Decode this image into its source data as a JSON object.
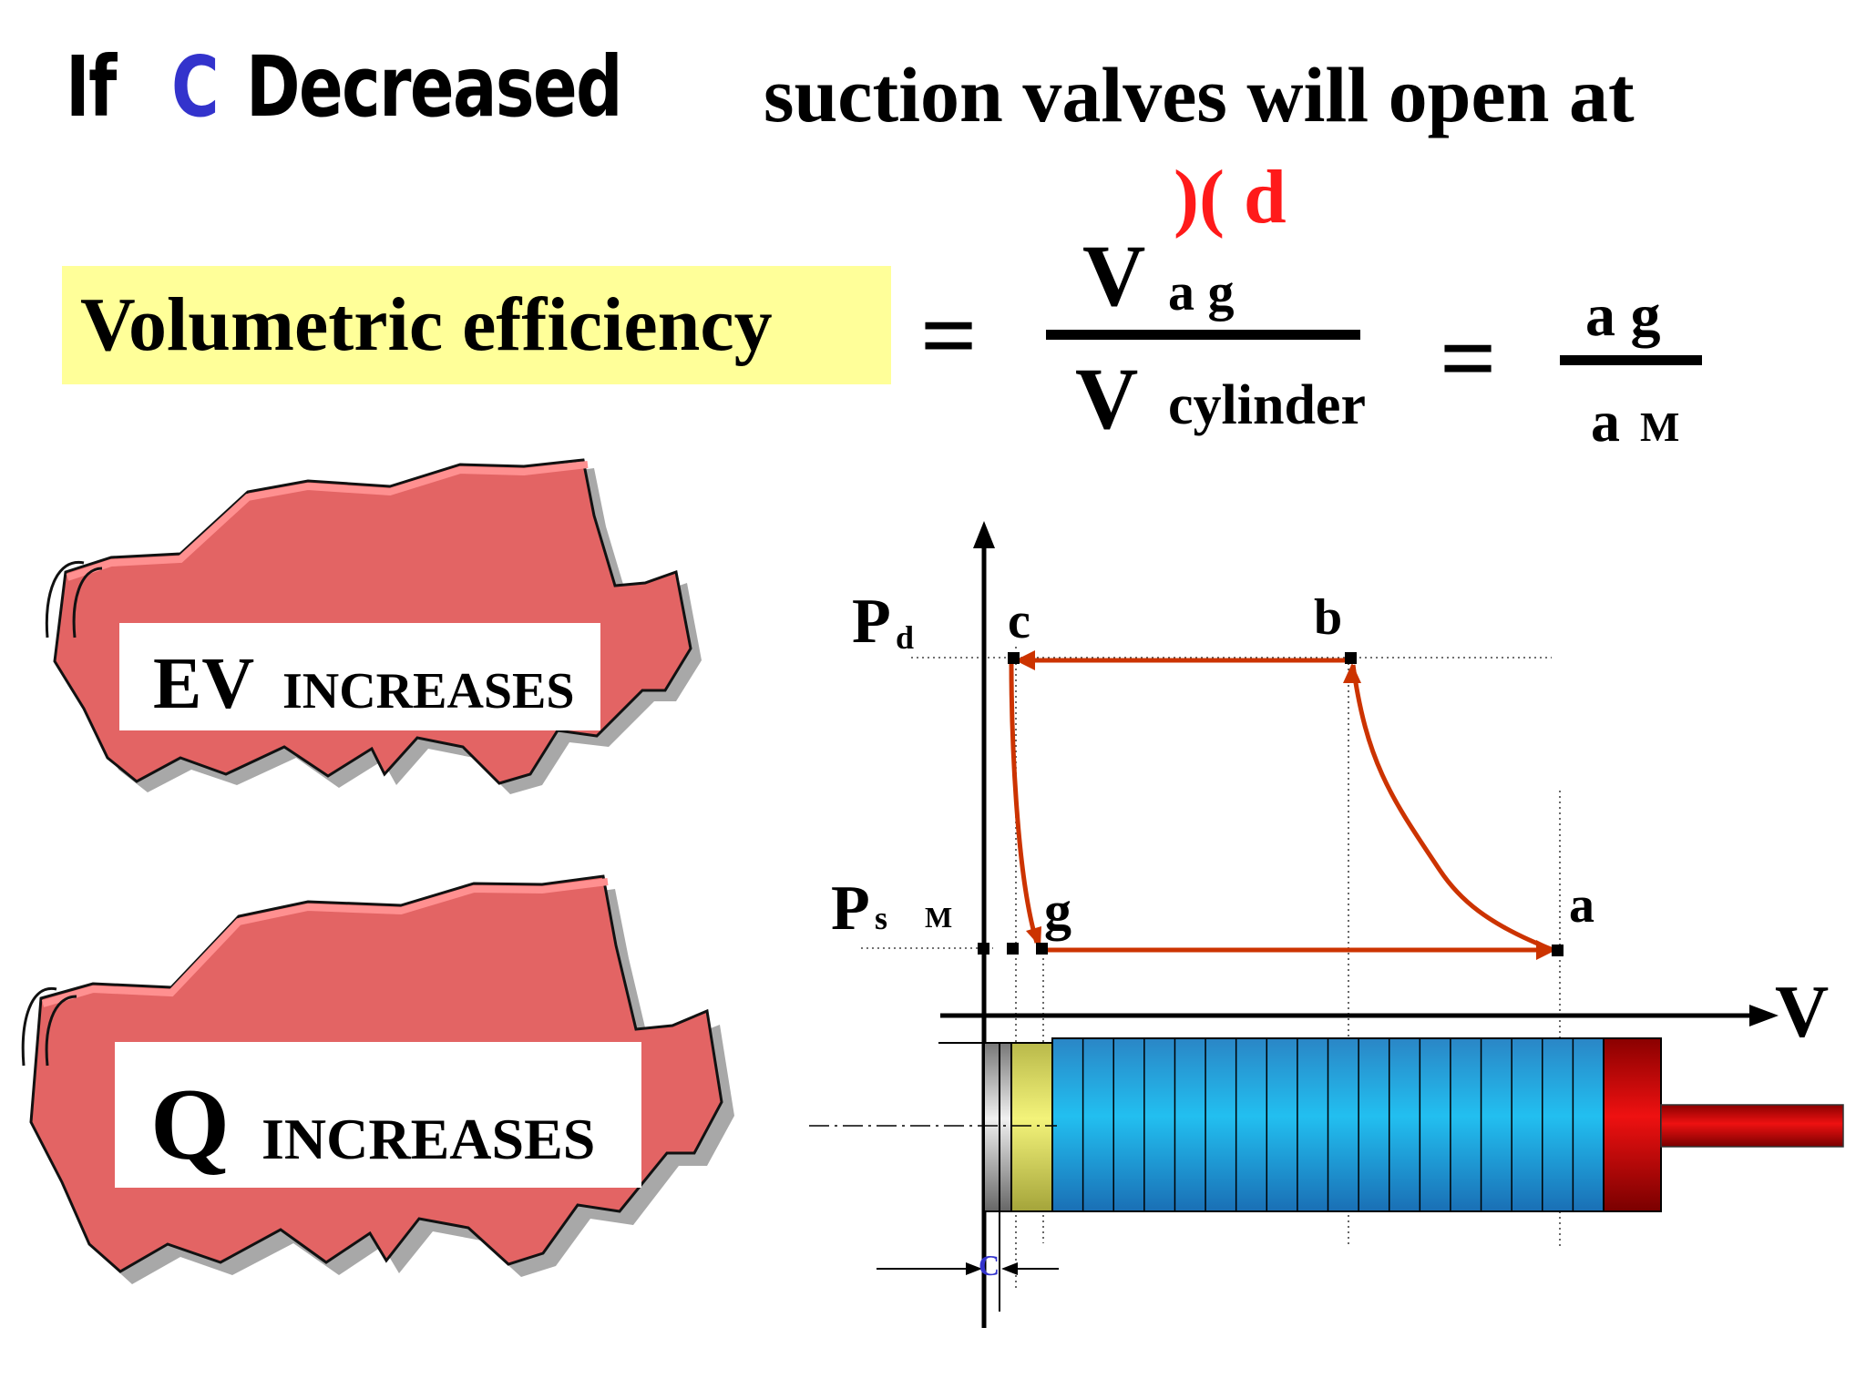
{
  "title": {
    "prefix": "If",
    "variable": "C",
    "variable_color": "#3333cc",
    "verb": "Decreased",
    "suffix": "suction valves will open   at",
    "point": ")( d",
    "point_color": "#ff1a1a"
  },
  "formula": {
    "label": "Volumetric efficiency",
    "label_bg": "#ffff99",
    "equals": "=",
    "numerator_symbol": "V",
    "numerator_sub": "a g",
    "denominator_symbol": "V",
    "denominator_sub": "cylinder",
    "ratio_numerator": "a g",
    "ratio_denominator_a": "a",
    "ratio_denominator_b": "M"
  },
  "callouts": [
    {
      "big": "EV",
      "small": "INCREASES"
    },
    {
      "big": "Q",
      "small": "INCREASES"
    }
  ],
  "diagram": {
    "pd_label": "P",
    "pd_sub": "d",
    "ps_label": "P",
    "ps_sub": "s",
    "ps_extra": "M",
    "points": {
      "a": "a",
      "b": "b",
      "c": "c",
      "g": "g"
    },
    "axis_label": "V",
    "clearance_label": "C",
    "cycle_color": "#cc3300"
  }
}
